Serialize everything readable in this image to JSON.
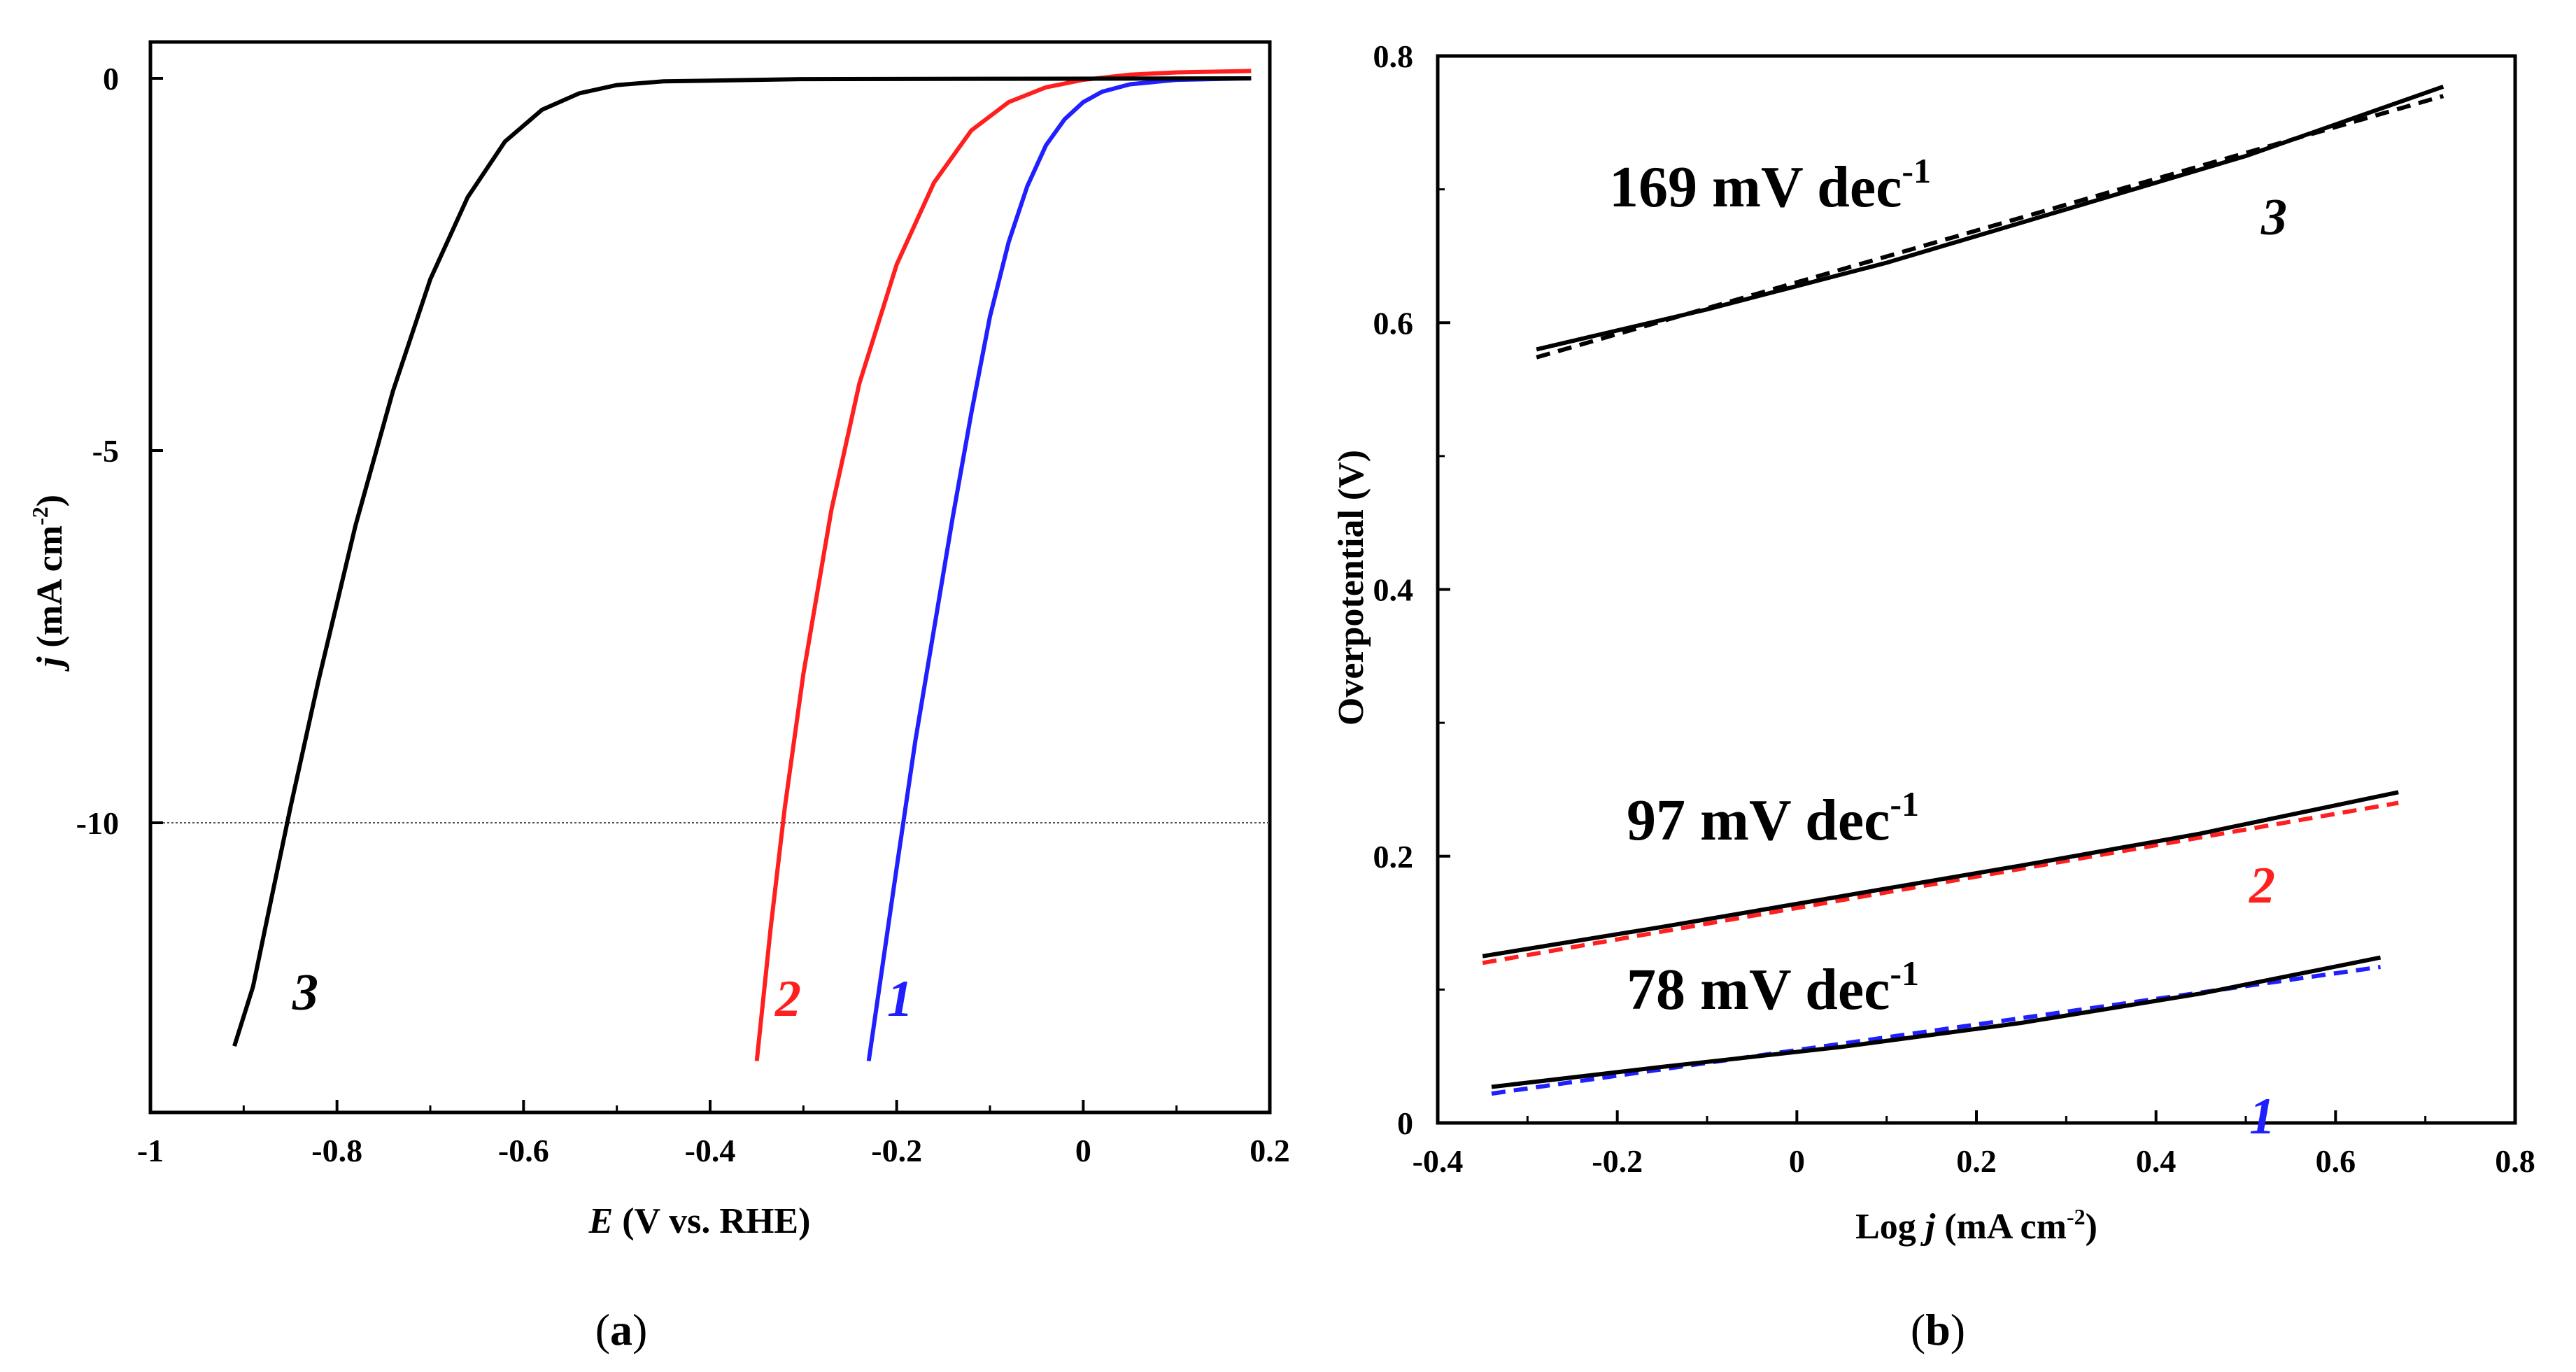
{
  "chart_data": [
    {
      "panel": "(a)",
      "panel_letter": "a",
      "type": "line",
      "title": "",
      "xlabel_italic": "E",
      "xlabel_rest": " (V vs. RHE)",
      "ylabel_italic": "j",
      "ylabel_rest": " (mA cm",
      "ylabel_sup": "-2",
      "ylabel_close": ")",
      "xlim": [
        -1,
        0.2
      ],
      "ylim": [
        -14,
        0.2
      ],
      "xticks": [
        -1,
        -0.8,
        -0.6,
        -0.4,
        -0.2,
        0,
        0.2
      ],
      "xtick_labels": [
        "-1",
        "-0.8",
        "-0.6",
        "-0.4",
        "-0.2",
        "0",
        "0.2"
      ],
      "yticks": [
        0,
        -5,
        -10
      ],
      "ytick_labels": [
        "0",
        "-5",
        "-10"
      ],
      "reference_line_y": -10,
      "grid": false,
      "series": [
        {
          "label": "1",
          "color": "#1f1fff",
          "x": [
            0.18,
            0.1,
            0.05,
            0.02,
            0.0,
            -0.02,
            -0.04,
            -0.06,
            -0.08,
            -0.1,
            -0.12,
            -0.14,
            -0.16,
            -0.18,
            -0.2,
            -0.215,
            -0.23
          ],
          "y": [
            0.0,
            -0.02,
            -0.08,
            -0.18,
            -0.32,
            -0.55,
            -0.9,
            -1.45,
            -2.2,
            -3.2,
            -4.5,
            -5.9,
            -7.4,
            -8.9,
            -10.6,
            -11.9,
            -13.2
          ]
        },
        {
          "label": "2",
          "color": "#ff1f1f",
          "x": [
            0.18,
            0.1,
            0.05,
            0.0,
            -0.04,
            -0.08,
            -0.12,
            -0.16,
            -0.2,
            -0.24,
            -0.27,
            -0.3,
            -0.32,
            -0.335,
            -0.35
          ],
          "y": [
            0.1,
            0.08,
            0.05,
            -0.02,
            -0.12,
            -0.32,
            -0.7,
            -1.4,
            -2.5,
            -4.1,
            -5.8,
            -8.0,
            -9.8,
            -11.4,
            -13.2
          ]
        },
        {
          "label": "3",
          "color": "#000000",
          "x": [
            0.18,
            -0.3,
            -0.45,
            -0.5,
            -0.54,
            -0.58,
            -0.62,
            -0.66,
            -0.7,
            -0.74,
            -0.78,
            -0.82,
            -0.85,
            -0.87,
            -0.89,
            -0.91
          ],
          "y": [
            0.0,
            -0.01,
            -0.04,
            -0.09,
            -0.2,
            -0.42,
            -0.85,
            -1.6,
            -2.7,
            -4.2,
            -6.0,
            -8.1,
            -9.8,
            -11.0,
            -12.2,
            -13.0
          ]
        }
      ]
    },
    {
      "panel": "(b)",
      "panel_letter": "b",
      "type": "line",
      "title": "",
      "xlabel_pre": "Log ",
      "xlabel_italic": "j",
      "xlabel_rest": " (mA cm",
      "xlabel_sup": "-2",
      "xlabel_close": ")",
      "ylabel": "Overpotential (V)",
      "xlim": [
        -0.4,
        0.8
      ],
      "ylim": [
        0,
        0.8
      ],
      "xticks": [
        -0.4,
        -0.2,
        0,
        0.2,
        0.4,
        0.6,
        0.8
      ],
      "xtick_labels": [
        "-0.4",
        "-0.2",
        "0",
        "0.2",
        "0.4",
        "0.6",
        "0.8"
      ],
      "yticks": [
        0,
        0.2,
        0.4,
        0.6,
        0.8
      ],
      "ytick_labels": [
        "0",
        "0.2",
        "0.4",
        "0.6",
        "0.8"
      ],
      "grid": false,
      "series": [
        {
          "label": "3",
          "color": "#000000",
          "slope_number": "169 mV dec",
          "slope_sup": "-1",
          "data_x": [
            -0.29,
            -0.1,
            0.1,
            0.3,
            0.5,
            0.72
          ],
          "data_y": [
            0.58,
            0.61,
            0.645,
            0.685,
            0.725,
            0.777
          ],
          "fit_x": [
            -0.29,
            0.72
          ],
          "fit_y": [
            0.574,
            0.77
          ]
        },
        {
          "label": "2",
          "color": "#ff1f1f",
          "slope_number": "97 mV dec",
          "slope_sup": "-1",
          "data_x": [
            -0.35,
            -0.15,
            0.05,
            0.25,
            0.45,
            0.67
          ],
          "data_y": [
            0.125,
            0.147,
            0.17,
            0.193,
            0.217,
            0.248
          ],
          "fit_x": [
            -0.35,
            0.67
          ],
          "fit_y": [
            0.12,
            0.24
          ]
        },
        {
          "label": "1",
          "color": "#1f1fff",
          "slope_number": "78 mV dec",
          "slope_sup": "-1",
          "data_x": [
            -0.34,
            -0.15,
            0.05,
            0.25,
            0.45,
            0.65
          ],
          "data_y": [
            0.027,
            0.042,
            0.057,
            0.075,
            0.097,
            0.124
          ],
          "fit_x": [
            -0.34,
            0.65
          ],
          "fit_y": [
            0.022,
            0.117
          ]
        }
      ]
    }
  ]
}
